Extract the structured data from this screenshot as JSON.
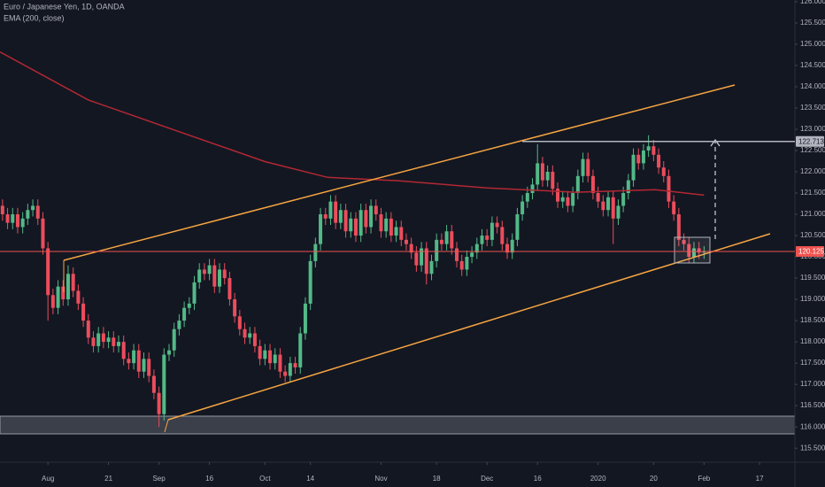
{
  "chart_data": {
    "type": "candlestick",
    "title": "Euro / Japanese Yen, 1D, OANDA",
    "up_color": "#53b987",
    "down_color": "#eb4d5c",
    "ohlc": [
      [
        121.2,
        121.35,
        120.85,
        121.0
      ],
      [
        121.0,
        121.15,
        120.65,
        120.8
      ],
      [
        120.8,
        121.15,
        120.65,
        121.0
      ],
      [
        121.0,
        121.15,
        120.55,
        120.7
      ],
      [
        120.7,
        121.05,
        120.55,
        120.9
      ],
      [
        120.9,
        121.25,
        120.75,
        121.1
      ],
      [
        121.1,
        121.35,
        120.95,
        121.2
      ],
      [
        121.2,
        121.35,
        120.75,
        120.9
      ],
      [
        120.9,
        121.05,
        120.05,
        120.2
      ],
      [
        120.2,
        120.35,
        118.5,
        119.1
      ],
      [
        119.1,
        119.25,
        118.65,
        118.8
      ],
      [
        118.8,
        119.45,
        118.65,
        119.3
      ],
      [
        119.3,
        119.45,
        118.85,
        119.0
      ],
      [
        119.0,
        119.8,
        118.85,
        119.6
      ],
      [
        119.6,
        119.75,
        119.05,
        119.2
      ],
      [
        119.2,
        119.35,
        118.75,
        118.9
      ],
      [
        118.9,
        119.05,
        118.35,
        118.5
      ],
      [
        118.5,
        118.65,
        117.95,
        118.1
      ],
      [
        118.1,
        118.25,
        117.75,
        117.9
      ],
      [
        117.9,
        118.35,
        117.75,
        118.2
      ],
      [
        118.2,
        118.35,
        117.85,
        118.0
      ],
      [
        118.0,
        118.25,
        117.85,
        118.1
      ],
      [
        118.1,
        118.25,
        117.75,
        117.9
      ],
      [
        117.9,
        118.15,
        117.75,
        118.0
      ],
      [
        118.0,
        118.15,
        117.45,
        117.6
      ],
      [
        117.6,
        117.75,
        117.35,
        117.5
      ],
      [
        117.5,
        117.95,
        117.35,
        117.8
      ],
      [
        117.8,
        117.95,
        117.15,
        117.3
      ],
      [
        117.3,
        117.75,
        117.15,
        117.6
      ],
      [
        117.6,
        117.75,
        117.05,
        117.2
      ],
      [
        117.2,
        117.35,
        116.65,
        116.8
      ],
      [
        116.8,
        116.95,
        116.0,
        116.3
      ],
      [
        116.3,
        117.85,
        116.15,
        117.7
      ],
      [
        117.7,
        117.95,
        117.55,
        117.8
      ],
      [
        117.8,
        118.45,
        117.65,
        118.3
      ],
      [
        118.3,
        118.65,
        118.15,
        118.5
      ],
      [
        118.5,
        118.95,
        118.35,
        118.8
      ],
      [
        118.8,
        119.05,
        118.65,
        118.9
      ],
      [
        118.9,
        119.55,
        118.75,
        119.4
      ],
      [
        119.4,
        119.85,
        119.25,
        119.7
      ],
      [
        119.7,
        119.85,
        119.45,
        119.6
      ],
      [
        119.6,
        119.95,
        119.45,
        119.8
      ],
      [
        119.8,
        119.95,
        119.15,
        119.3
      ],
      [
        119.3,
        119.85,
        119.15,
        119.7
      ],
      [
        119.7,
        119.85,
        119.35,
        119.5
      ],
      [
        119.5,
        119.65,
        118.85,
        119.0
      ],
      [
        119.0,
        119.15,
        118.45,
        118.6
      ],
      [
        118.6,
        118.75,
        118.15,
        118.3
      ],
      [
        118.3,
        118.45,
        117.95,
        118.1
      ],
      [
        118.1,
        118.35,
        117.95,
        118.2
      ],
      [
        118.2,
        118.35,
        117.75,
        117.9
      ],
      [
        117.9,
        118.05,
        117.45,
        117.6
      ],
      [
        117.6,
        117.95,
        117.45,
        117.8
      ],
      [
        117.8,
        117.95,
        117.35,
        117.5
      ],
      [
        117.5,
        117.85,
        117.35,
        117.7
      ],
      [
        117.7,
        117.85,
        117.15,
        117.3
      ],
      [
        117.3,
        117.45,
        117.05,
        117.2
      ],
      [
        117.2,
        117.65,
        117.05,
        117.5
      ],
      [
        117.5,
        117.65,
        117.25,
        117.4
      ],
      [
        117.4,
        118.35,
        117.25,
        118.2
      ],
      [
        118.2,
        119.05,
        118.05,
        118.9
      ],
      [
        118.9,
        120.05,
        118.75,
        119.9
      ],
      [
        119.9,
        120.45,
        119.75,
        120.3
      ],
      [
        120.3,
        121.15,
        120.15,
        121.0
      ],
      [
        121.0,
        121.15,
        120.75,
        120.9
      ],
      [
        120.9,
        121.45,
        120.75,
        121.3
      ],
      [
        121.3,
        121.45,
        120.65,
        120.8
      ],
      [
        120.8,
        121.25,
        120.65,
        121.1
      ],
      [
        121.1,
        121.25,
        120.45,
        120.6
      ],
      [
        120.6,
        121.05,
        120.45,
        120.9
      ],
      [
        120.9,
        121.05,
        120.35,
        120.5
      ],
      [
        120.5,
        121.25,
        120.35,
        121.1
      ],
      [
        121.1,
        121.25,
        120.55,
        120.7
      ],
      [
        120.7,
        121.35,
        120.55,
        121.2
      ],
      [
        121.2,
        121.35,
        120.85,
        121.0
      ],
      [
        121.0,
        121.15,
        120.45,
        120.6
      ],
      [
        120.6,
        121.05,
        120.45,
        120.9
      ],
      [
        120.9,
        121.05,
        120.35,
        120.5
      ],
      [
        120.5,
        120.85,
        120.35,
        120.7
      ],
      [
        120.7,
        120.85,
        120.25,
        120.4
      ],
      [
        120.4,
        120.55,
        120.15,
        120.3
      ],
      [
        120.3,
        120.45,
        119.95,
        120.1
      ],
      [
        120.1,
        120.25,
        119.65,
        119.8
      ],
      [
        119.8,
        120.35,
        119.65,
        120.2
      ],
      [
        120.2,
        120.35,
        119.35,
        119.6
      ],
      [
        119.6,
        120.05,
        119.45,
        119.9
      ],
      [
        119.9,
        120.55,
        119.75,
        120.4
      ],
      [
        120.4,
        120.55,
        120.15,
        120.3
      ],
      [
        120.3,
        120.75,
        120.15,
        120.6
      ],
      [
        120.6,
        120.75,
        120.05,
        120.2
      ],
      [
        120.2,
        120.35,
        119.75,
        119.9
      ],
      [
        119.9,
        120.05,
        119.55,
        119.7
      ],
      [
        119.7,
        120.15,
        119.55,
        120.0
      ],
      [
        120.0,
        120.25,
        119.85,
        120.1
      ],
      [
        120.1,
        120.45,
        119.95,
        120.3
      ],
      [
        120.3,
        120.65,
        120.15,
        120.5
      ],
      [
        120.5,
        120.65,
        120.25,
        120.4
      ],
      [
        120.4,
        120.95,
        120.25,
        120.8
      ],
      [
        120.8,
        120.95,
        120.55,
        120.7
      ],
      [
        120.7,
        120.85,
        120.15,
        120.3
      ],
      [
        120.3,
        120.45,
        119.95,
        120.1
      ],
      [
        120.1,
        120.55,
        119.95,
        120.4
      ],
      [
        120.4,
        121.15,
        120.25,
        121.0
      ],
      [
        121.0,
        121.45,
        120.85,
        121.3
      ],
      [
        121.3,
        121.65,
        121.15,
        121.5
      ],
      [
        121.5,
        121.85,
        121.35,
        121.7
      ],
      [
        121.7,
        122.65,
        121.55,
        122.2
      ],
      [
        122.2,
        122.35,
        121.65,
        121.8
      ],
      [
        121.8,
        122.15,
        121.65,
        122.0
      ],
      [
        122.0,
        122.15,
        121.45,
        121.6
      ],
      [
        121.6,
        121.75,
        121.15,
        121.3
      ],
      [
        121.3,
        121.55,
        121.15,
        121.4
      ],
      [
        121.4,
        121.55,
        121.05,
        121.2
      ],
      [
        121.2,
        121.65,
        121.05,
        121.5
      ],
      [
        121.5,
        122.05,
        121.35,
        121.9
      ],
      [
        121.9,
        122.45,
        121.75,
        122.3
      ],
      [
        122.3,
        122.45,
        121.75,
        121.9
      ],
      [
        121.9,
        122.05,
        121.35,
        121.5
      ],
      [
        121.5,
        121.65,
        121.15,
        121.3
      ],
      [
        121.3,
        121.45,
        120.95,
        121.1
      ],
      [
        121.1,
        121.55,
        120.95,
        121.4
      ],
      [
        121.4,
        121.55,
        120.3,
        120.9
      ],
      [
        120.9,
        121.35,
        120.75,
        121.2
      ],
      [
        121.2,
        121.65,
        121.05,
        121.5
      ],
      [
        121.5,
        121.95,
        121.35,
        121.8
      ],
      [
        121.8,
        122.55,
        121.65,
        122.4
      ],
      [
        122.4,
        122.55,
        122.05,
        122.2
      ],
      [
        122.2,
        122.65,
        122.05,
        122.5
      ],
      [
        122.5,
        122.86,
        122.35,
        122.6
      ],
      [
        122.6,
        122.75,
        122.25,
        122.4
      ],
      [
        122.4,
        122.55,
        121.95,
        122.1
      ],
      [
        122.1,
        122.25,
        121.75,
        121.9
      ],
      [
        121.9,
        122.05,
        121.15,
        121.3
      ],
      [
        121.3,
        121.45,
        120.85,
        121.0
      ],
      [
        121.0,
        121.15,
        120.25,
        120.4
      ],
      [
        120.4,
        120.55,
        120.15,
        120.3
      ],
      [
        120.3,
        120.45,
        119.85,
        120.0
      ],
      [
        120.0,
        120.35,
        119.85,
        120.2
      ],
      [
        120.2,
        120.35,
        119.95,
        120.1
      ],
      [
        120.1,
        120.25,
        119.95,
        120.125
      ]
    ],
    "ema": {
      "name": "EMA (200, close)",
      "color": "#b22833",
      "x": [
        -0.5,
        17,
        34.6,
        52,
        64.4,
        78.4,
        96,
        113.5,
        129.3,
        139
      ],
      "y": [
        124.82,
        123.69,
        122.96,
        122.24,
        121.87,
        121.79,
        121.62,
        121.52,
        121.58,
        121.45
      ]
    },
    "price_lines": [
      {
        "value": 122.713,
        "color": "#b2b5be"
      },
      {
        "value": 120.125,
        "color": "#ef5350"
      }
    ],
    "xlim": [
      -0.5,
      157
    ],
    "xticks": [
      {
        "value": 9,
        "label": "Aug"
      },
      21,
      {
        "value": 31,
        "label": "Sep"
      },
      {
        "value": 41,
        "label": "16"
      },
      {
        "value": 52,
        "label": "Oct"
      },
      {
        "value": 61,
        "label": "14"
      },
      {
        "value": 75,
        "label": "Nov"
      },
      {
        "value": 86,
        "label": "18"
      },
      {
        "value": 96,
        "label": "Dec"
      },
      {
        "value": 106,
        "label": "16"
      },
      {
        "value": 118,
        "label": "2020"
      },
      {
        "value": 129,
        "label": "20"
      },
      {
        "value": 139,
        "label": "Feb"
      },
      {
        "value": 150,
        "label": "17"
      }
    ],
    "ylim": [
      115.17,
      126.04
    ],
    "yticks": [
      {
        "value": 115.5,
        "label": "115.500"
      },
      {
        "value": 116,
        "label": "116.000"
      },
      {
        "value": 116.5,
        "label": "116.500"
      },
      {
        "value": 117,
        "label": "117.000"
      },
      {
        "value": 117.5,
        "label": "117.500"
      },
      {
        "value": 118,
        "label": "118.000"
      },
      {
        "value": 118.5,
        "label": "118.500"
      },
      {
        "value": 119,
        "label": "119.000"
      },
      {
        "value": 119.5,
        "label": "119.500"
      },
      {
        "value": 120,
        "label": "120.000"
      },
      {
        "value": 120.5,
        "label": "120.500"
      },
      {
        "value": 121,
        "label": "121.000"
      },
      {
        "value": 121.5,
        "label": "121.500"
      },
      {
        "value": 122,
        "label": "122.000"
      },
      {
        "value": 122.5,
        "label": "122.500"
      },
      {
        "value": 123,
        "label": "123.000"
      },
      {
        "value": 123.5,
        "label": "123.500"
      },
      {
        "value": 124,
        "label": "124.000"
      },
      {
        "value": 124.5,
        "label": "124.500"
      },
      {
        "value": 125,
        "label": "125.000"
      },
      {
        "value": 125.5,
        "label": "125.500"
      },
      {
        "value": 126,
        "label": "126.000"
      }
    ]
  }
}
